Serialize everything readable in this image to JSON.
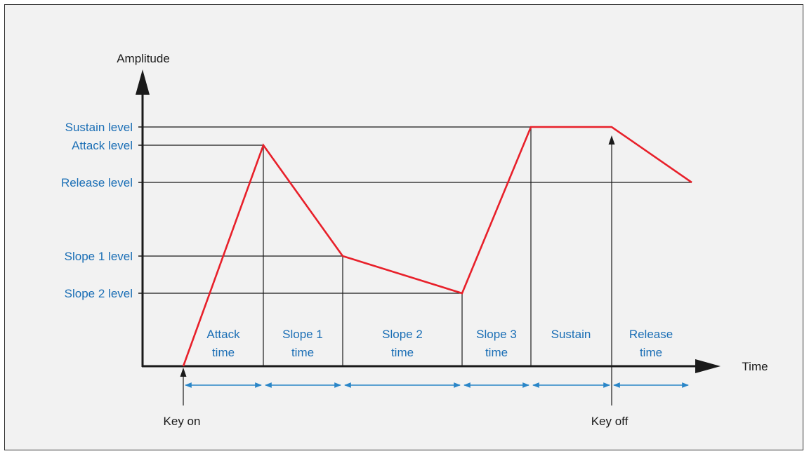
{
  "colors": {
    "background": "#f2f2f2",
    "axis": "#1a1a1a",
    "envelope": "#e8202a",
    "guide": "#1a1a1a",
    "label_blue": "#1a6eb5",
    "arrow_blue": "#2a86c8"
  },
  "axes": {
    "y_title": "Amplitude",
    "x_title": "Time"
  },
  "levels": {
    "sustain": "Sustain level",
    "attack": "Attack level",
    "release": "Release level",
    "slope1": "Slope 1 level",
    "slope2": "Slope 2 level"
  },
  "segments": [
    {
      "line1": "Attack",
      "line2": "time"
    },
    {
      "line1": "Slope 1",
      "line2": "time"
    },
    {
      "line1": "Slope 2",
      "line2": "time"
    },
    {
      "line1": "Slope 3",
      "line2": "time"
    },
    {
      "line1": "Sustain",
      "line2": ""
    },
    {
      "line1": "Release",
      "line2": "time"
    }
  ],
  "events": {
    "key_on": "Key on",
    "key_off": "Key off"
  }
}
